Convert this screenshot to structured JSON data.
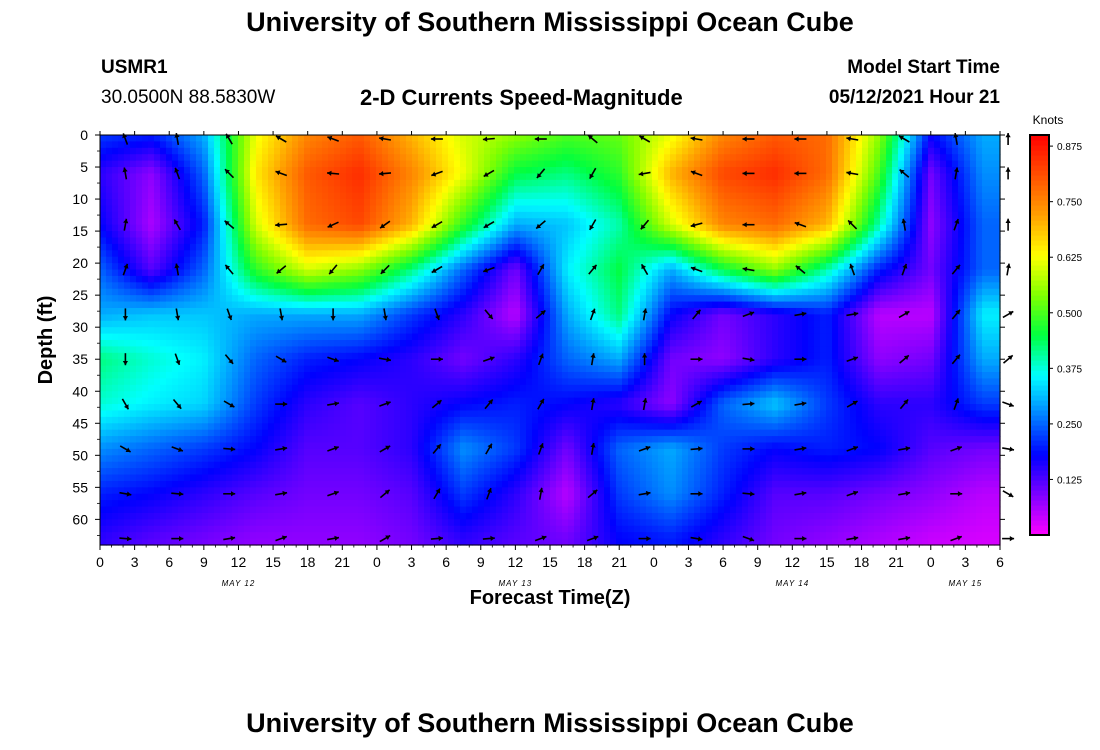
{
  "header": {
    "title_top": "University of Southern Mississippi Ocean Cube",
    "station_id": "USMR1",
    "location": "30.0500N  88.5830W",
    "chart_title": "2-D Currents Speed-Magnitude",
    "start_label": "Model Start Time",
    "start_value": "05/12/2021 Hour 21",
    "title_bottom": "University of Southern Mississippi Ocean Cube"
  },
  "chart_data": {
    "type": "heatmap",
    "xlabel": "Forecast Time(Z)",
    "ylabel": "Depth (ft)",
    "x_ticks": [
      "0",
      "3",
      "6",
      "9",
      "12",
      "15",
      "18",
      "21",
      "0",
      "3",
      "6",
      "9",
      "12",
      "15",
      "18",
      "21",
      "0",
      "3",
      "6",
      "9",
      "12",
      "15",
      "18",
      "21",
      "0",
      "3",
      "6"
    ],
    "x_tick_hours": [
      0,
      3,
      6,
      9,
      12,
      15,
      18,
      21,
      24,
      27,
      30,
      33,
      36,
      39,
      42,
      45,
      48,
      51,
      54,
      57,
      60,
      63,
      66,
      69,
      72,
      75,
      78
    ],
    "xlim_hours": [
      0,
      78
    ],
    "date_labels": [
      {
        "label": "MAY 12",
        "hour": 12
      },
      {
        "label": "MAY 13",
        "hour": 36
      },
      {
        "label": "MAY 14",
        "hour": 60
      },
      {
        "label": "MAY 15",
        "hour": 75
      }
    ],
    "y_ticks": [
      0,
      5,
      10,
      15,
      20,
      25,
      30,
      35,
      40,
      45,
      50,
      55,
      60
    ],
    "ylim": [
      0,
      64
    ],
    "colorbar": {
      "title": "Knots",
      "ticks": [
        "0.875",
        "0.750",
        "0.625",
        "0.500",
        "0.375",
        "0.250",
        "0.125"
      ],
      "tick_values": [
        0.875,
        0.75,
        0.625,
        0.5,
        0.375,
        0.25,
        0.125
      ],
      "range": [
        0,
        0.9
      ],
      "colors": [
        "#ff00ff",
        "#8000ff",
        "#0000ff",
        "#0080ff",
        "#00ffff",
        "#00ff40",
        "#80ff00",
        "#ffff00",
        "#ffa000",
        "#ff5000",
        "#ff0000"
      ]
    },
    "speed_grid": {
      "hours": [
        0,
        4.5,
        9,
        13.5,
        18,
        22.5,
        27,
        31.5,
        36,
        40.5,
        45,
        49.5,
        54,
        58.5,
        63,
        67.5,
        72,
        76.5
      ],
      "depths": [
        0,
        6,
        14,
        21,
        28,
        35,
        42,
        49,
        56,
        63
      ],
      "values": [
        [
          0.22,
          0.2,
          0.3,
          0.62,
          0.75,
          0.8,
          0.7,
          0.6,
          0.55,
          0.5,
          0.52,
          0.62,
          0.75,
          0.8,
          0.78,
          0.55,
          0.18,
          0.3
        ],
        [
          0.15,
          0.08,
          0.25,
          0.65,
          0.8,
          0.85,
          0.75,
          0.62,
          0.45,
          0.42,
          0.48,
          0.7,
          0.82,
          0.85,
          0.78,
          0.5,
          0.1,
          0.28
        ],
        [
          0.18,
          0.06,
          0.2,
          0.6,
          0.78,
          0.82,
          0.7,
          0.48,
          0.3,
          0.32,
          0.4,
          0.6,
          0.75,
          0.78,
          0.7,
          0.4,
          0.08,
          0.25
        ],
        [
          0.25,
          0.12,
          0.25,
          0.48,
          0.6,
          0.55,
          0.42,
          0.25,
          0.1,
          0.35,
          0.45,
          0.3,
          0.45,
          0.55,
          0.4,
          0.2,
          0.1,
          0.25
        ],
        [
          0.3,
          0.32,
          0.32,
          0.3,
          0.3,
          0.3,
          0.22,
          0.15,
          0.05,
          0.3,
          0.42,
          0.18,
          0.1,
          0.15,
          0.2,
          0.05,
          0.05,
          0.35
        ],
        [
          0.42,
          0.38,
          0.35,
          0.25,
          0.2,
          0.18,
          0.15,
          0.1,
          0.15,
          0.25,
          0.3,
          0.1,
          0.08,
          0.15,
          0.2,
          0.08,
          0.1,
          0.3
        ],
        [
          0.38,
          0.35,
          0.33,
          0.22,
          0.15,
          0.12,
          0.15,
          0.18,
          0.2,
          0.18,
          0.15,
          0.08,
          0.25,
          0.32,
          0.22,
          0.15,
          0.15,
          0.22
        ],
        [
          0.28,
          0.25,
          0.22,
          0.18,
          0.12,
          0.12,
          0.15,
          0.28,
          0.22,
          0.1,
          0.25,
          0.3,
          0.22,
          0.18,
          0.2,
          0.18,
          0.12,
          0.1
        ],
        [
          0.2,
          0.18,
          0.15,
          0.12,
          0.1,
          0.1,
          0.12,
          0.22,
          0.15,
          0.05,
          0.22,
          0.28,
          0.2,
          0.12,
          0.12,
          0.1,
          0.08,
          0.05
        ],
        [
          0.15,
          0.12,
          0.1,
          0.08,
          0.08,
          0.08,
          0.1,
          0.15,
          0.12,
          0.1,
          0.18,
          0.2,
          0.15,
          0.1,
          0.08,
          0.06,
          0.04,
          0.03
        ]
      ]
    },
    "direction_grid_deg": {
      "hours": [
        0,
        4.5,
        9,
        13.5,
        18,
        22.5,
        27,
        31.5,
        36,
        40.5,
        45,
        49.5,
        54,
        58.5,
        63,
        67.5,
        72,
        76.5
      ],
      "depths": [
        0,
        6,
        14,
        21,
        28,
        35,
        42,
        49,
        56,
        63
      ],
      "values": [
        [
          200,
          190,
          210,
          240,
          250,
          260,
          270,
          275,
          270,
          230,
          240,
          260,
          270,
          270,
          260,
          240,
          190,
          180
        ],
        [
          190,
          200,
          225,
          250,
          265,
          275,
          290,
          300,
          320,
          330,
          280,
          250,
          270,
          270,
          260,
          230,
          170,
          180
        ],
        [
          170,
          210,
          230,
          275,
          295,
          305,
          300,
          300,
          310,
          330,
          320,
          285,
          270,
          250,
          225,
          190,
          160,
          180
        ],
        [
          160,
          190,
          220,
          310,
          320,
          315,
          300,
          290,
          150,
          140,
          210,
          250,
          260,
          230,
          200,
          160,
          140,
          170
        ],
        [
          0,
          10,
          20,
          10,
          0,
          10,
          20,
          40,
          130,
          160,
          170,
          140,
          110,
          100,
          100,
          120,
          140,
          120
        ],
        [
          0,
          20,
          40,
          60,
          70,
          80,
          90,
          110,
          160,
          170,
          180,
          90,
          80,
          90,
          110,
          130,
          140,
          130
        ],
        [
          30,
          40,
          60,
          90,
          100,
          110,
          130,
          140,
          150,
          170,
          170,
          120,
          95,
          100,
          120,
          140,
          160,
          70
        ],
        [
          60,
          70,
          85,
          100,
          110,
          120,
          140,
          150,
          160,
          170,
          110,
          95,
          90,
          100,
          110,
          100,
          110,
          80
        ],
        [
          80,
          85,
          90,
          100,
          110,
          130,
          150,
          160,
          170,
          130,
          100,
          90,
          85,
          100,
          110,
          100,
          90,
          60
        ],
        [
          85,
          90,
          100,
          110,
          100,
          120,
          95,
          95,
          110,
          110,
          90,
          80,
          70,
          90,
          100,
          100,
          110,
          90
        ]
      ]
    }
  }
}
